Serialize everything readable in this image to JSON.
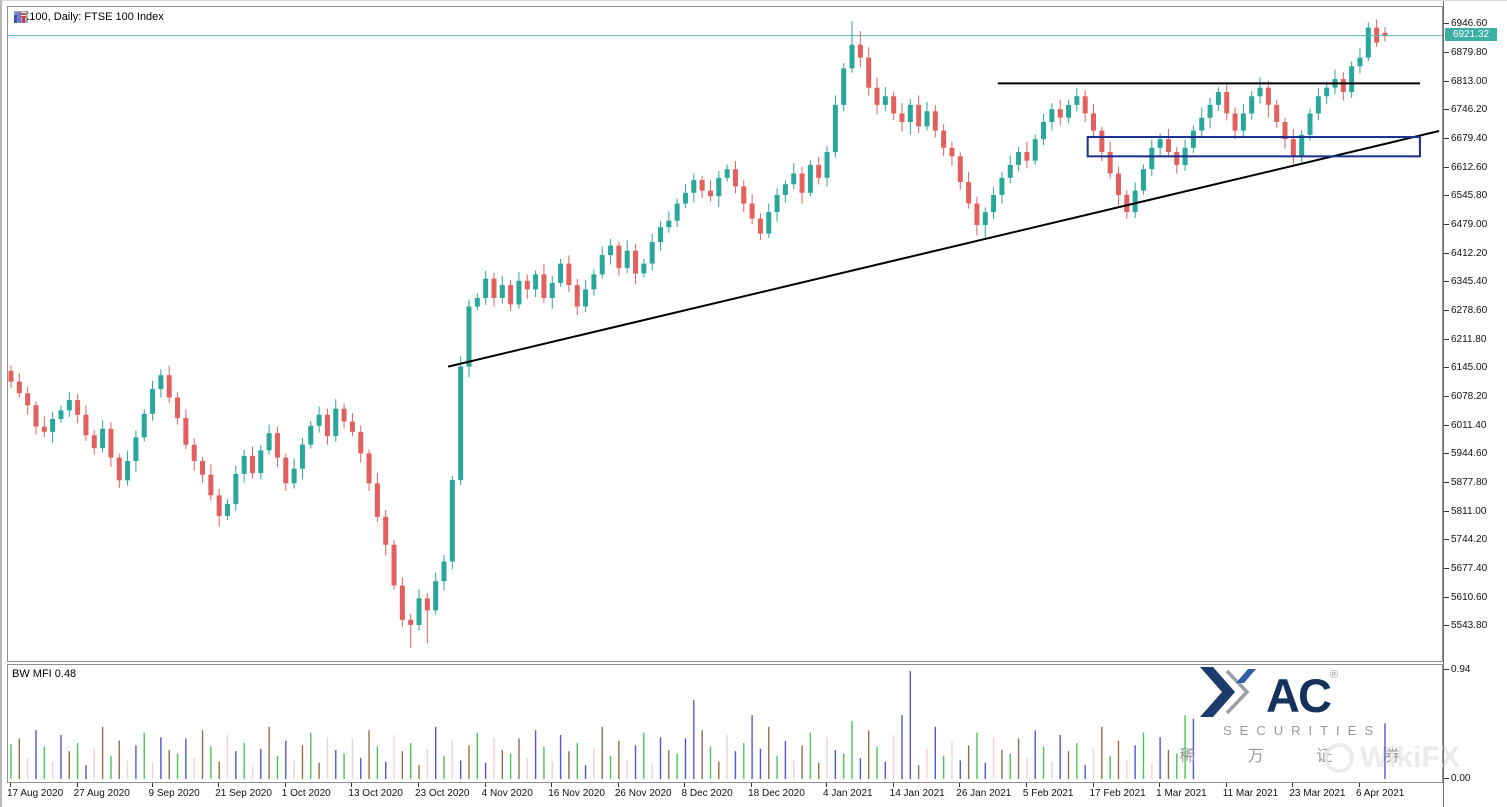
{
  "window": {
    "title": "UK100, Daily:  FTSE 100 Index"
  },
  "indicator_panel": {
    "label": "BW MFI 0.48",
    "max_tick": "0.94",
    "min_tick": "0.00"
  },
  "current_price": {
    "display": "6921.32",
    "price": 6921.32
  },
  "colors": {
    "bull": "#2aa79b",
    "bear": "#e2615e",
    "price_line": "#53b9ae",
    "tag_bg": "#3cb0a4",
    "trendline": "#000000",
    "resistance": "#000000",
    "zone_border": "#1a2f8f",
    "mfi": {
      "g": "#4dc457",
      "b": "#5456d8",
      "o": "#8f6f4c",
      "p": "#f0d2d8"
    },
    "logo_navy": "#16325c",
    "logo_blue": "#2f5fa3",
    "logo_gray": "#97999c",
    "watermark": "#e9e9eb"
  },
  "y_axis": {
    "ticks": [
      "6946.60",
      "6879.80",
      "6813.00",
      "6746.20",
      "6679.40",
      "6612.60",
      "6545.80",
      "6479.00",
      "6412.20",
      "6345.40",
      "6278.60",
      "6211.80",
      "6145.00",
      "6078.20",
      "6011.40",
      "5944.60",
      "5877.80",
      "5811.00",
      "5744.20",
      "5677.40",
      "5610.60",
      "5543.80"
    ]
  },
  "x_axis": {
    "ticks": [
      {
        "label": "17 Aug 2020",
        "bar": 0
      },
      {
        "label": "27 Aug 2020",
        "bar": 8
      },
      {
        "label": "9 Sep 2020",
        "bar": 17
      },
      {
        "label": "21 Sep 2020",
        "bar": 25
      },
      {
        "label": "1 Oct 2020",
        "bar": 33
      },
      {
        "label": "13 Oct 2020",
        "bar": 41
      },
      {
        "label": "23 Oct 2020",
        "bar": 49
      },
      {
        "label": "4 Nov 2020",
        "bar": 57
      },
      {
        "label": "16 Nov 2020",
        "bar": 65
      },
      {
        "label": "26 Nov 2020",
        "bar": 73
      },
      {
        "label": "8 Dec 2020",
        "bar": 81
      },
      {
        "label": "18 Dec 2020",
        "bar": 89
      },
      {
        "label": "4 Jan 2021",
        "bar": 98
      },
      {
        "label": "14 Jan 2021",
        "bar": 106
      },
      {
        "label": "26 Jan 2021",
        "bar": 114
      },
      {
        "label": "5 Feb 2021",
        "bar": 122
      },
      {
        "label": "17 Feb 2021",
        "bar": 130
      },
      {
        "label": "1 Mar 2021",
        "bar": 138
      },
      {
        "label": "11 Mar 2021",
        "bar": 146
      },
      {
        "label": "23 Mar 2021",
        "bar": 154
      },
      {
        "label": "6 Apr 2021",
        "bar": 162
      }
    ]
  },
  "chart_data": {
    "type": "candlestick",
    "symbol": "UK100",
    "timeframe": "Daily",
    "description": "FTSE 100 Index",
    "bars": 166,
    "first_date": "17 Aug 2020",
    "last_date": "9 Apr 2021",
    "ylim": [
      5464,
      6988
    ],
    "grid": false,
    "candles": [
      [
        6140,
        6152,
        6100,
        6115
      ],
      [
        6115,
        6135,
        6078,
        6088
      ],
      [
        6088,
        6103,
        6038,
        6060
      ],
      [
        6060,
        6069,
        5992,
        6010
      ],
      [
        6010,
        6034,
        5986,
        5998
      ],
      [
        5998,
        6044,
        5973,
        6028
      ],
      [
        6028,
        6059,
        6019,
        6048
      ],
      [
        6048,
        6091,
        6032,
        6072
      ],
      [
        6072,
        6086,
        6018,
        6038
      ],
      [
        6038,
        6060,
        5977,
        5990
      ],
      [
        5990,
        6002,
        5945,
        5960
      ],
      [
        5960,
        6025,
        5950,
        6005
      ],
      [
        6005,
        6020,
        5916,
        5938
      ],
      [
        5938,
        5947,
        5867,
        5885
      ],
      [
        5885,
        5954,
        5873,
        5930
      ],
      [
        5930,
        6001,
        5905,
        5985
      ],
      [
        5985,
        6051,
        5976,
        6040
      ],
      [
        6040,
        6117,
        6024,
        6098
      ],
      [
        6098,
        6144,
        6078,
        6130
      ],
      [
        6130,
        6152,
        6065,
        6078
      ],
      [
        6078,
        6090,
        6015,
        6030
      ],
      [
        6030,
        6050,
        5958,
        5968
      ],
      [
        5968,
        5983,
        5908,
        5930
      ],
      [
        5930,
        5939,
        5880,
        5898
      ],
      [
        5898,
        5922,
        5838,
        5850
      ],
      [
        5850,
        5866,
        5777,
        5802
      ],
      [
        5802,
        5841,
        5793,
        5830
      ],
      [
        5830,
        5919,
        5814,
        5900
      ],
      [
        5900,
        5956,
        5880,
        5942
      ],
      [
        5942,
        5964,
        5889,
        5902
      ],
      [
        5902,
        5967,
        5887,
        5955
      ],
      [
        5955,
        6015,
        5945,
        5995
      ],
      [
        5995,
        6010,
        5916,
        5938
      ],
      [
        5938,
        5947,
        5860,
        5878
      ],
      [
        5878,
        5936,
        5866,
        5912
      ],
      [
        5912,
        5984,
        5887,
        5968
      ],
      [
        5968,
        6023,
        5959,
        6012
      ],
      [
        6012,
        6057,
        5996,
        6038
      ],
      [
        6038,
        6052,
        5968,
        5988
      ],
      [
        5988,
        6074,
        5975,
        6052
      ],
      [
        6052,
        6064,
        6007,
        6022
      ],
      [
        6022,
        6042,
        5988,
        5998
      ],
      [
        5998,
        6013,
        5926,
        5948
      ],
      [
        5948,
        5957,
        5860,
        5878
      ],
      [
        5878,
        5902,
        5788,
        5800
      ],
      [
        5800,
        5816,
        5710,
        5735
      ],
      [
        5735,
        5746,
        5631,
        5640
      ],
      [
        5640,
        5659,
        5544,
        5560
      ],
      [
        5560,
        5574,
        5495,
        5548
      ],
      [
        5548,
        5632,
        5535,
        5610
      ],
      [
        5610,
        5622,
        5505,
        5582
      ],
      [
        5582,
        5670,
        5572,
        5650
      ],
      [
        5650,
        5711,
        5628,
        5696
      ],
      [
        5696,
        5895,
        5678,
        5886
      ],
      [
        5886,
        6174,
        5874,
        6150
      ],
      [
        6150,
        6306,
        6125,
        6290
      ],
      [
        6290,
        6321,
        6281,
        6310
      ],
      [
        6310,
        6374,
        6294,
        6355
      ],
      [
        6355,
        6369,
        6290,
        6310
      ],
      [
        6310,
        6362,
        6297,
        6340
      ],
      [
        6340,
        6352,
        6280,
        6295
      ],
      [
        6295,
        6370,
        6285,
        6350
      ],
      [
        6350,
        6365,
        6308,
        6330
      ],
      [
        6330,
        6374,
        6312,
        6365
      ],
      [
        6365,
        6389,
        6298,
        6310
      ],
      [
        6310,
        6361,
        6285,
        6345
      ],
      [
        6345,
        6401,
        6336,
        6390
      ],
      [
        6390,
        6409,
        6324,
        6340
      ],
      [
        6340,
        6354,
        6270,
        6290
      ],
      [
        6290,
        6352,
        6277,
        6330
      ],
      [
        6330,
        6377,
        6315,
        6365
      ],
      [
        6365,
        6430,
        6355,
        6410
      ],
      [
        6410,
        6447,
        6388,
        6432
      ],
      [
        6432,
        6441,
        6362,
        6380
      ],
      [
        6380,
        6444,
        6368,
        6420
      ],
      [
        6420,
        6436,
        6342,
        6367
      ],
      [
        6367,
        6401,
        6358,
        6390
      ],
      [
        6390,
        6459,
        6374,
        6440
      ],
      [
        6440,
        6489,
        6420,
        6475
      ],
      [
        6475,
        6512,
        6462,
        6490
      ],
      [
        6490,
        6542,
        6475,
        6530
      ],
      [
        6530,
        6575,
        6520,
        6555
      ],
      [
        6555,
        6600,
        6533,
        6585
      ],
      [
        6585,
        6594,
        6542,
        6560
      ],
      [
        6560,
        6584,
        6535,
        6547
      ],
      [
        6547,
        6606,
        6522,
        6590
      ],
      [
        6590,
        6621,
        6581,
        6610
      ],
      [
        6610,
        6629,
        6554,
        6570
      ],
      [
        6570,
        6584,
        6510,
        6530
      ],
      [
        6530,
        6552,
        6482,
        6495
      ],
      [
        6495,
        6507,
        6445,
        6460
      ],
      [
        6460,
        6530,
        6450,
        6510
      ],
      [
        6510,
        6565,
        6488,
        6550
      ],
      [
        6550,
        6584,
        6532,
        6575
      ],
      [
        6575,
        6624,
        6563,
        6600
      ],
      [
        6600,
        6616,
        6530,
        6555
      ],
      [
        6555,
        6631,
        6546,
        6620
      ],
      [
        6620,
        6639,
        6574,
        6590
      ],
      [
        6590,
        6664,
        6570,
        6650
      ],
      [
        6650,
        6782,
        6637,
        6760
      ],
      [
        6760,
        6857,
        6745,
        6845
      ],
      [
        6845,
        6955,
        6835,
        6900
      ],
      [
        6900,
        6932,
        6848,
        6870
      ],
      [
        6870,
        6894,
        6782,
        6800
      ],
      [
        6800,
        6824,
        6738,
        6760
      ],
      [
        6760,
        6802,
        6745,
        6780
      ],
      [
        6780,
        6791,
        6724,
        6740
      ],
      [
        6740,
        6764,
        6698,
        6720
      ],
      [
        6720,
        6774,
        6690,
        6760
      ],
      [
        6760,
        6782,
        6694,
        6710
      ],
      [
        6710,
        6767,
        6700,
        6745
      ],
      [
        6745,
        6759,
        6684,
        6700
      ],
      [
        6700,
        6715,
        6640,
        6660
      ],
      [
        6660,
        6674,
        6618,
        6640
      ],
      [
        6640,
        6649,
        6562,
        6580
      ],
      [
        6580,
        6604,
        6518,
        6530
      ],
      [
        6530,
        6546,
        6455,
        6480
      ],
      [
        6480,
        6521,
        6446,
        6510
      ],
      [
        6510,
        6569,
        6494,
        6550
      ],
      [
        6550,
        6604,
        6530,
        6590
      ],
      [
        6590,
        6642,
        6577,
        6620
      ],
      [
        6620,
        6662,
        6605,
        6650
      ],
      [
        6650,
        6674,
        6612,
        6630
      ],
      [
        6630,
        6691,
        6621,
        6680
      ],
      [
        6680,
        6739,
        6666,
        6720
      ],
      [
        6720,
        6764,
        6700,
        6750
      ],
      [
        6750,
        6772,
        6712,
        6730
      ],
      [
        6730,
        6771,
        6717,
        6760
      ],
      [
        6760,
        6799,
        6744,
        6780
      ],
      [
        6780,
        6794,
        6720,
        6740
      ],
      [
        6740,
        6762,
        6687,
        6700
      ],
      [
        6700,
        6709,
        6629,
        6650
      ],
      [
        6650,
        6674,
        6588,
        6600
      ],
      [
        6600,
        6616,
        6525,
        6550
      ],
      [
        6550,
        6561,
        6494,
        6510
      ],
      [
        6510,
        6579,
        6496,
        6560
      ],
      [
        6560,
        6621,
        6551,
        6610
      ],
      [
        6610,
        6679,
        6594,
        6660
      ],
      [
        6660,
        6694,
        6642,
        6680
      ],
      [
        6680,
        6704,
        6638,
        6650
      ],
      [
        6650,
        6662,
        6600,
        6620
      ],
      [
        6620,
        6679,
        6606,
        6660
      ],
      [
        6660,
        6712,
        6648,
        6700
      ],
      [
        6700,
        6754,
        6687,
        6730
      ],
      [
        6730,
        6776,
        6705,
        6760
      ],
      [
        6760,
        6801,
        6746,
        6790
      ],
      [
        6790,
        6809,
        6724,
        6740
      ],
      [
        6740,
        6754,
        6680,
        6700
      ],
      [
        6700,
        6762,
        6687,
        6740
      ],
      [
        6740,
        6792,
        6725,
        6780
      ],
      [
        6780,
        6824,
        6763,
        6800
      ],
      [
        6800,
        6816,
        6730,
        6760
      ],
      [
        6760,
        6771,
        6706,
        6720
      ],
      [
        6720,
        6729,
        6658,
        6680
      ],
      [
        6680,
        6704,
        6620,
        6640
      ],
      [
        6640,
        6701,
        6625,
        6690
      ],
      [
        6690,
        6751,
        6676,
        6740
      ],
      [
        6740,
        6799,
        6724,
        6780
      ],
      [
        6780,
        6814,
        6762,
        6800
      ],
      [
        6800,
        6842,
        6785,
        6820
      ],
      [
        6820,
        6836,
        6770,
        6790
      ],
      [
        6790,
        6861,
        6776,
        6850
      ],
      [
        6850,
        6892,
        6833,
        6870
      ],
      [
        6870,
        6952,
        6862,
        6940
      ],
      [
        6940,
        6959,
        6895,
        6905
      ],
      [
        6928,
        6941,
        6908,
        6921
      ]
    ],
    "annotations": {
      "current_price_line": 6921.32,
      "trendline": {
        "x1_bar": 52.5,
        "price1": 6150,
        "x2_bar": 171.5,
        "price2": 6699
      },
      "resistance_line": {
        "price": 6810,
        "x1_bar": 118.5,
        "x2_bar": 169.2
      },
      "support_zone": {
        "price_top": 6685,
        "price_bottom": 6640,
        "x1_bar": 129.3,
        "x2_bar": 169.2
      }
    },
    "indicator": {
      "name": "BW MFI",
      "current": 0.48,
      "ylim": [
        0,
        0.94
      ],
      "values": [
        0.3,
        0.35,
        0.18,
        0.42,
        0.28,
        0.15,
        0.38,
        0.24,
        0.31,
        0.12,
        0.26,
        0.45,
        0.2,
        0.33,
        0.16,
        0.29,
        0.4,
        0.14,
        0.36,
        0.25,
        0.22,
        0.35,
        0.18,
        0.42,
        0.28,
        0.15,
        0.38,
        0.24,
        0.31,
        0.12,
        0.26,
        0.45,
        0.2,
        0.33,
        0.16,
        0.29,
        0.4,
        0.14,
        0.36,
        0.25,
        0.22,
        0.35,
        0.18,
        0.42,
        0.28,
        0.15,
        0.38,
        0.24,
        0.31,
        0.12,
        0.26,
        0.45,
        0.2,
        0.33,
        0.16,
        0.29,
        0.4,
        0.14,
        0.36,
        0.25,
        0.22,
        0.35,
        0.18,
        0.42,
        0.28,
        0.15,
        0.38,
        0.24,
        0.31,
        0.12,
        0.26,
        0.45,
        0.2,
        0.33,
        0.16,
        0.29,
        0.4,
        0.14,
        0.36,
        0.25,
        0.22,
        0.35,
        0.68,
        0.42,
        0.28,
        0.15,
        0.38,
        0.24,
        0.31,
        0.55,
        0.26,
        0.45,
        0.2,
        0.33,
        0.16,
        0.29,
        0.4,
        0.14,
        0.36,
        0.25,
        0.22,
        0.5,
        0.18,
        0.42,
        0.28,
        0.15,
        0.38,
        0.55,
        0.93,
        0.12,
        0.26,
        0.45,
        0.2,
        0.33,
        0.16,
        0.29,
        0.4,
        0.14,
        0.36,
        0.25,
        0.22,
        0.35,
        0.18,
        0.42,
        0.28,
        0.15,
        0.38,
        0.24,
        0.31,
        0.12,
        0.26,
        0.45,
        0.2,
        0.33,
        0.16,
        0.29,
        0.4,
        0.14,
        0.36,
        0.25,
        0.22,
        0.55,
        0.52,
        0.42,
        0.28,
        0.15,
        0.38,
        0.24,
        0.31,
        0.12,
        0.26,
        0.45,
        0.2,
        0.33,
        0.16,
        0.29,
        0.4,
        0.14,
        0.36,
        0.25,
        0.22,
        0.35,
        0.18,
        0.42,
        0.28,
        0.48
      ],
      "color_sequence": "gopbgpbogbpogopbgpbogbpogopbgpbogbpogopbgpbogbpogopbgpbogbpogopbgpbogbpogopbgpbogbbogopbgbbogbpogopbggbogbpbbopbgpbogbpogopbgpbogbpogopbgpboggbogopbgpbogbpogopbgpbogb"
    }
  },
  "logo": {
    "brand_ac": "AC",
    "reg": "®",
    "line2": "SECURITIES",
    "line3": "稀 万 证 券"
  },
  "watermark": {
    "text": "WikiFX"
  }
}
